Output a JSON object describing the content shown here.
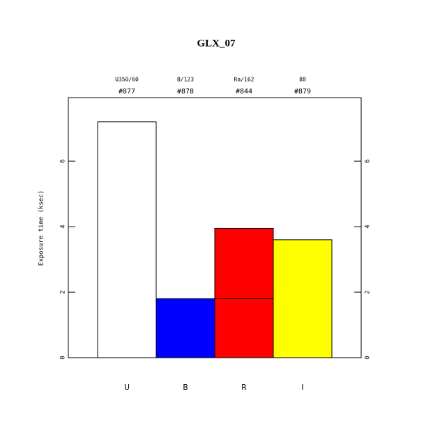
{
  "chart_data": {
    "type": "bar",
    "title": "GLX_07",
    "y_label": "Exposure time (ksec)",
    "categories": [
      "U",
      "B",
      "R",
      "I"
    ],
    "filters": [
      "U350/60",
      "B/123",
      "Ra/162",
      "88"
    ],
    "exposure_ids": [
      "#877",
      "#878",
      "#844",
      "#879"
    ],
    "colors": [
      "#ffffff",
      "#0000ff",
      "#ff0000",
      "#ffff00"
    ],
    "stacked": true,
    "series": [
      {
        "values": [
          7.2,
          1.8,
          1.8,
          3.6
        ]
      },
      {
        "values": [
          null,
          null,
          2.15,
          null
        ]
      }
    ],
    "ylim": [
      0,
      7.94
    ],
    "yticks": [
      0,
      2,
      4,
      6
    ]
  }
}
